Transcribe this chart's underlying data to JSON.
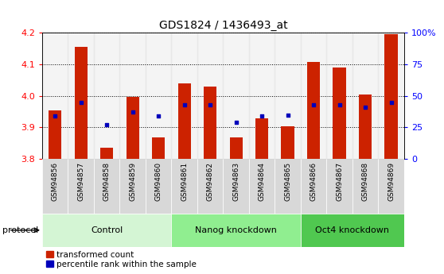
{
  "title": "GDS1824 / 1436493_at",
  "samples": [
    "GSM94856",
    "GSM94857",
    "GSM94858",
    "GSM94859",
    "GSM94860",
    "GSM94861",
    "GSM94862",
    "GSM94863",
    "GSM94864",
    "GSM94865",
    "GSM94866",
    "GSM94867",
    "GSM94868",
    "GSM94869"
  ],
  "transformed_count": [
    3.955,
    4.155,
    3.835,
    3.998,
    3.868,
    4.04,
    4.03,
    3.868,
    3.928,
    3.903,
    4.108,
    4.09,
    4.005,
    4.195
  ],
  "percentile_rank_pct": [
    34,
    45,
    27,
    37,
    34,
    43,
    43,
    29,
    34,
    35,
    43,
    43,
    41,
    45
  ],
  "ylim_left": [
    3.8,
    4.2
  ],
  "ylim_right": [
    0,
    100
  ],
  "groups": [
    {
      "label": "Control",
      "start": 0,
      "end": 5,
      "color": "#d4f5d4"
    },
    {
      "label": "Nanog knockdown",
      "start": 5,
      "end": 10,
      "color": "#90ee90"
    },
    {
      "label": "Oct4 knockdown",
      "start": 10,
      "end": 14,
      "color": "#50c850"
    }
  ],
  "bar_color": "#cc2200",
  "dot_color": "#0000bb",
  "bar_width": 0.5,
  "yticks_left": [
    3.8,
    3.9,
    4.0,
    4.1,
    4.2
  ],
  "yticks_right": [
    0,
    25,
    50,
    75,
    100
  ],
  "tick_label_bg": "#d8d8d8",
  "protocol_label": "protocol",
  "legend_items": [
    "transformed count",
    "percentile rank within the sample"
  ]
}
